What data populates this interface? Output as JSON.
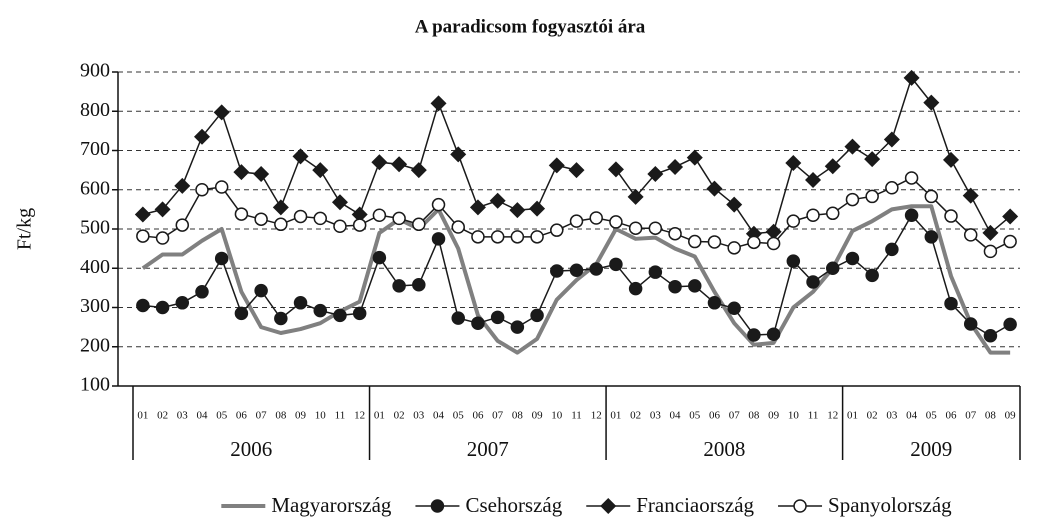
{
  "chart_data": {
    "type": "line",
    "title": "A paradicsom fogyasztói ára",
    "y_label": "Ft/kg",
    "categories": [
      "01",
      "02",
      "03",
      "04",
      "05",
      "06",
      "07",
      "08",
      "09",
      "10",
      "11",
      "12",
      "01",
      "02",
      "03",
      "04",
      "05",
      "06",
      "07",
      "08",
      "09",
      "10",
      "11",
      "12",
      "01",
      "02",
      "03",
      "04",
      "05",
      "06",
      "07",
      "08",
      "09",
      "10",
      "11",
      "12",
      "01",
      "02",
      "03",
      "04",
      "05",
      "06",
      "07",
      "08",
      "09"
    ],
    "years": [
      "2006",
      "2007",
      "2008",
      "2009"
    ],
    "ylim": [
      100,
      900
    ],
    "yticks": [
      100,
      200,
      300,
      400,
      500,
      600,
      700,
      800,
      900
    ],
    "grid": true,
    "legend": "bottom",
    "series": [
      {
        "name": "Magyarország",
        "color": "#808080",
        "marker": "none",
        "values": [
          400,
          435,
          435,
          470,
          500,
          340,
          250,
          235,
          245,
          260,
          290,
          315,
          490,
          525,
          500,
          550,
          450,
          280,
          215,
          185,
          220,
          320,
          370,
          410,
          500,
          475,
          478,
          450,
          430,
          340,
          260,
          205,
          210,
          300,
          340,
          400,
          495,
          520,
          550,
          558,
          558,
          380,
          260,
          185,
          185
        ]
      },
      {
        "name": "Csehország",
        "color": "#1a1a1a",
        "marker": "circle",
        "values": [
          305,
          300,
          312,
          340,
          425,
          285,
          343,
          272,
          312,
          292,
          280,
          285,
          427,
          355,
          358,
          475,
          273,
          260,
          275,
          250,
          280,
          393,
          395,
          398,
          410,
          348,
          390,
          353,
          355,
          312,
          298,
          230,
          232,
          418,
          365,
          400,
          425,
          382,
          448,
          535,
          480,
          310,
          258,
          228,
          257
        ]
      },
      {
        "name": "Franciaország",
        "color": "#1a1a1a",
        "marker": "diamond",
        "values": [
          537,
          550,
          610,
          735,
          797,
          645,
          640,
          555,
          685,
          650,
          568,
          537,
          670,
          665,
          650,
          820,
          690,
          555,
          572,
          548,
          552,
          662,
          650,
          null,
          652,
          582,
          640,
          658,
          682,
          603,
          562,
          488,
          493,
          668,
          625,
          660,
          710,
          678,
          728,
          885,
          822,
          676,
          585,
          490,
          532
        ]
      },
      {
        "name": "Spanyolország",
        "color": "#1a1a1a",
        "marker": "circle-open",
        "values": [
          482,
          477,
          510,
          600,
          607,
          538,
          525,
          512,
          532,
          527,
          507,
          510,
          535,
          527,
          512,
          562,
          505,
          480,
          480,
          480,
          480,
          497,
          520,
          528,
          518,
          502,
          502,
          488,
          468,
          467,
          452,
          466,
          463,
          520,
          535,
          540,
          575,
          583,
          605,
          630,
          583,
          533,
          485,
          443,
          468
        ]
      }
    ]
  }
}
